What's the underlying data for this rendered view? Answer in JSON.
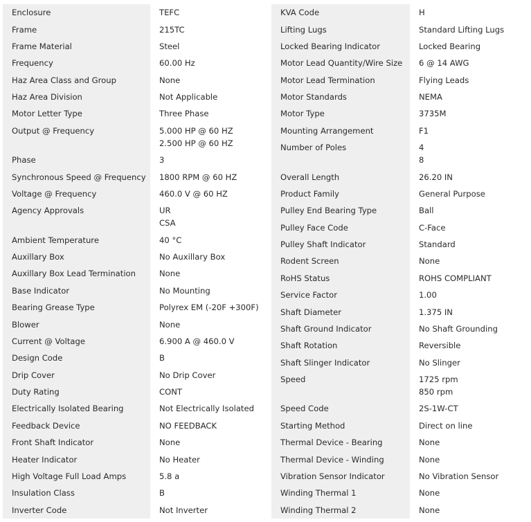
{
  "left": [
    {
      "label": "Enclosure",
      "values": [
        "TEFC"
      ]
    },
    {
      "label": "Frame",
      "values": [
        "215TC"
      ]
    },
    {
      "label": "Frame Material",
      "values": [
        "Steel"
      ]
    },
    {
      "label": "Frequency",
      "values": [
        "60.00 Hz"
      ]
    },
    {
      "label": "Haz Area Class and Group",
      "values": [
        "None"
      ]
    },
    {
      "label": "Haz Area Division",
      "values": [
        "Not Applicable"
      ]
    },
    {
      "label": "Motor Letter Type",
      "values": [
        "Three Phase"
      ]
    },
    {
      "label": "Output @ Frequency",
      "values": [
        "5.000 HP @ 60 HZ",
        "2.500 HP @ 60 HZ"
      ]
    },
    {
      "label": "Phase",
      "values": [
        "3"
      ]
    },
    {
      "label": "Synchronous Speed @ Frequency",
      "values": [
        "1800 RPM @ 60 HZ"
      ]
    },
    {
      "label": "Voltage @ Frequency",
      "values": [
        "460.0 V @ 60 HZ"
      ]
    },
    {
      "label": "Agency Approvals",
      "values": [
        "UR",
        "CSA"
      ]
    },
    {
      "label": "Ambient Temperature",
      "values": [
        "40 °C"
      ]
    },
    {
      "label": "Auxillary Box",
      "values": [
        "No Auxillary Box"
      ]
    },
    {
      "label": "Auxillary Box Lead Termination",
      "values": [
        "None"
      ]
    },
    {
      "label": "Base Indicator",
      "values": [
        "No Mounting"
      ]
    },
    {
      "label": "Bearing Grease Type",
      "values": [
        "Polyrex EM (-20F +300F)"
      ]
    },
    {
      "label": "Blower",
      "values": [
        "None"
      ]
    },
    {
      "label": "Current @ Voltage",
      "values": [
        "6.900 A @ 460.0 V"
      ]
    },
    {
      "label": "Design Code",
      "values": [
        "B"
      ]
    },
    {
      "label": "Drip Cover",
      "values": [
        "No Drip Cover"
      ]
    },
    {
      "label": "Duty Rating",
      "values": [
        "CONT"
      ]
    },
    {
      "label": "Electrically Isolated Bearing",
      "values": [
        "Not Electrically Isolated"
      ]
    },
    {
      "label": "Feedback Device",
      "values": [
        "NO FEEDBACK"
      ]
    },
    {
      "label": "Front Shaft Indicator",
      "values": [
        "None"
      ]
    },
    {
      "label": "Heater Indicator",
      "values": [
        "No Heater"
      ]
    },
    {
      "label": "High Voltage Full Load Amps",
      "values": [
        "5.8 a"
      ]
    },
    {
      "label": "Insulation Class",
      "values": [
        "B"
      ]
    },
    {
      "label": "Inverter Code",
      "values": [
        "Not Inverter"
      ]
    }
  ],
  "right": [
    {
      "label": "KVA Code",
      "values": [
        "H"
      ]
    },
    {
      "label": "Lifting Lugs",
      "values": [
        "Standard Lifting Lugs"
      ]
    },
    {
      "label": "Locked Bearing Indicator",
      "values": [
        "Locked Bearing"
      ]
    },
    {
      "label": "Motor Lead Quantity/Wire Size",
      "values": [
        "6 @ 14 AWG"
      ]
    },
    {
      "label": "Motor Lead Termination",
      "values": [
        "Flying Leads"
      ]
    },
    {
      "label": "Motor Standards",
      "values": [
        "NEMA"
      ]
    },
    {
      "label": "Motor Type",
      "values": [
        "3735M"
      ]
    },
    {
      "label": "Mounting Arrangement",
      "values": [
        "F1"
      ]
    },
    {
      "label": "Number of Poles",
      "values": [
        "4",
        "8"
      ]
    },
    {
      "label": "Overall Length",
      "values": [
        "26.20 IN"
      ]
    },
    {
      "label": "Product Family",
      "values": [
        "General Purpose"
      ]
    },
    {
      "label": "Pulley End Bearing Type",
      "values": [
        "Ball"
      ]
    },
    {
      "label": "Pulley Face Code",
      "values": [
        "C-Face"
      ]
    },
    {
      "label": "Pulley Shaft Indicator",
      "values": [
        "Standard"
      ]
    },
    {
      "label": "Rodent Screen",
      "values": [
        "None"
      ]
    },
    {
      "label": "RoHS Status",
      "values": [
        "ROHS COMPLIANT"
      ]
    },
    {
      "label": "Service Factor",
      "values": [
        "1.00"
      ]
    },
    {
      "label": "Shaft Diameter",
      "values": [
        "1.375 IN"
      ]
    },
    {
      "label": "Shaft Ground Indicator",
      "values": [
        "No Shaft Grounding"
      ]
    },
    {
      "label": "Shaft Rotation",
      "values": [
        "Reversible"
      ]
    },
    {
      "label": "Shaft Slinger Indicator",
      "values": [
        "No Slinger"
      ]
    },
    {
      "label": "Speed",
      "values": [
        "1725 rpm",
        "850 rpm"
      ]
    },
    {
      "label": "Speed Code",
      "values": [
        "2S-1W-CT"
      ]
    },
    {
      "label": "Starting Method",
      "values": [
        "Direct on line"
      ]
    },
    {
      "label": "Thermal Device - Bearing",
      "values": [
        "None"
      ]
    },
    {
      "label": "Thermal Device - Winding",
      "values": [
        "None"
      ]
    },
    {
      "label": "Vibration Sensor Indicator",
      "values": [
        "No Vibration Sensor"
      ]
    },
    {
      "label": "Winding Thermal 1",
      "values": [
        "None"
      ]
    },
    {
      "label": "Winding Thermal 2",
      "values": [
        "None"
      ]
    }
  ]
}
